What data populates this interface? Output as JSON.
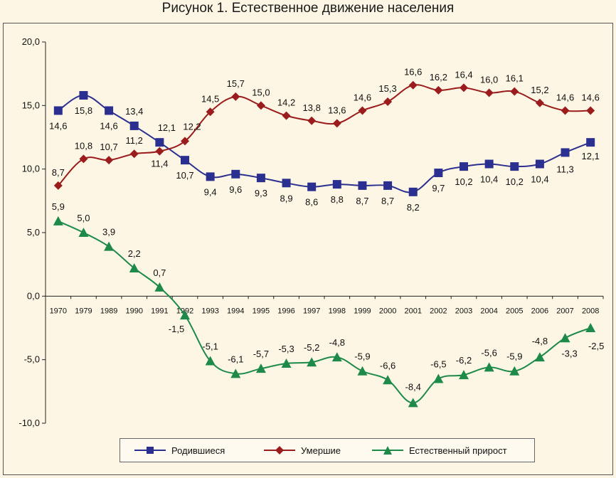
{
  "title": "Рисунок 1. Естественное движение населения",
  "chart_data": {
    "type": "line",
    "categories": [
      "1970",
      "1979",
      "1989",
      "1990",
      "1991",
      "1992",
      "1993",
      "1994",
      "1995",
      "1996",
      "1997",
      "1998",
      "1999",
      "2000",
      "2001",
      "2002",
      "2003",
      "2004",
      "2005",
      "2006",
      "2007",
      "2008"
    ],
    "ylim": [
      -10,
      20
    ],
    "yticks": [
      "20,0",
      "15,0",
      "10,0",
      "5,0",
      "0,0",
      "-5,0",
      "-10,0"
    ],
    "ytick_values": [
      20,
      15,
      10,
      5,
      0,
      -5,
      -10
    ],
    "grid": false,
    "legend_position": "bottom",
    "series": [
      {
        "name": "Родившиеся",
        "color": "#2b2f8f",
        "marker": "square",
        "values": [
          14.6,
          15.8,
          14.6,
          13.4,
          12.1,
          10.7,
          9.4,
          9.6,
          9.3,
          8.9,
          8.6,
          8.8,
          8.7,
          8.7,
          8.2,
          9.7,
          10.2,
          10.4,
          10.2,
          10.4,
          11.3,
          12.1
        ],
        "labels": [
          "14,6",
          "15,8",
          "14,6",
          "13,4",
          "12,1",
          "10,7",
          "9,4",
          "9,6",
          "9,3",
          "8,9",
          "8,6",
          "8,8",
          "8,7",
          "8,7",
          "8,2",
          "9,7",
          "10,2",
          "10,4",
          "10,2",
          "10,4",
          "11,3",
          "12,1"
        ]
      },
      {
        "name": "Умершие",
        "color": "#9b1c1c",
        "marker": "diamond",
        "values": [
          8.7,
          10.8,
          10.7,
          11.2,
          11.4,
          12.2,
          14.5,
          15.7,
          15.0,
          14.2,
          13.8,
          13.6,
          14.6,
          15.3,
          16.6,
          16.2,
          16.4,
          16.0,
          16.1,
          15.2,
          14.6,
          14.6
        ],
        "labels": [
          "8,7",
          "10,8",
          "10,7",
          "11,2",
          "11,4",
          "12,2",
          "14,5",
          "15,7",
          "15,0",
          "14,2",
          "13,8",
          "13,6",
          "14,6",
          "15,3",
          "16,6",
          "16,2",
          "16,4",
          "16,0",
          "16,1",
          "15,2",
          "14,6",
          "14,6"
        ]
      },
      {
        "name": "Естественный прирост",
        "color": "#1e8a4a",
        "marker": "triangle",
        "values": [
          5.9,
          5.0,
          3.9,
          2.2,
          0.7,
          -1.5,
          -5.1,
          -6.1,
          -5.7,
          -5.3,
          -5.2,
          -4.8,
          -5.9,
          -6.6,
          -8.4,
          -6.5,
          -6.2,
          -5.6,
          -5.9,
          -4.8,
          -3.3,
          -2.5
        ],
        "labels": [
          "5,9",
          "5,0",
          "3,9",
          "2,2",
          "0,7",
          "-1,5",
          "-5,1",
          "-6,1",
          "-5,7",
          "-5,3",
          "-5,2",
          "-4,8",
          "-5,9",
          "-6,6",
          "-8,4",
          "-6,5",
          "-6,2",
          "-5,6",
          "-5,9",
          "-4,8",
          "-3,3",
          "-2,5"
        ]
      }
    ]
  }
}
